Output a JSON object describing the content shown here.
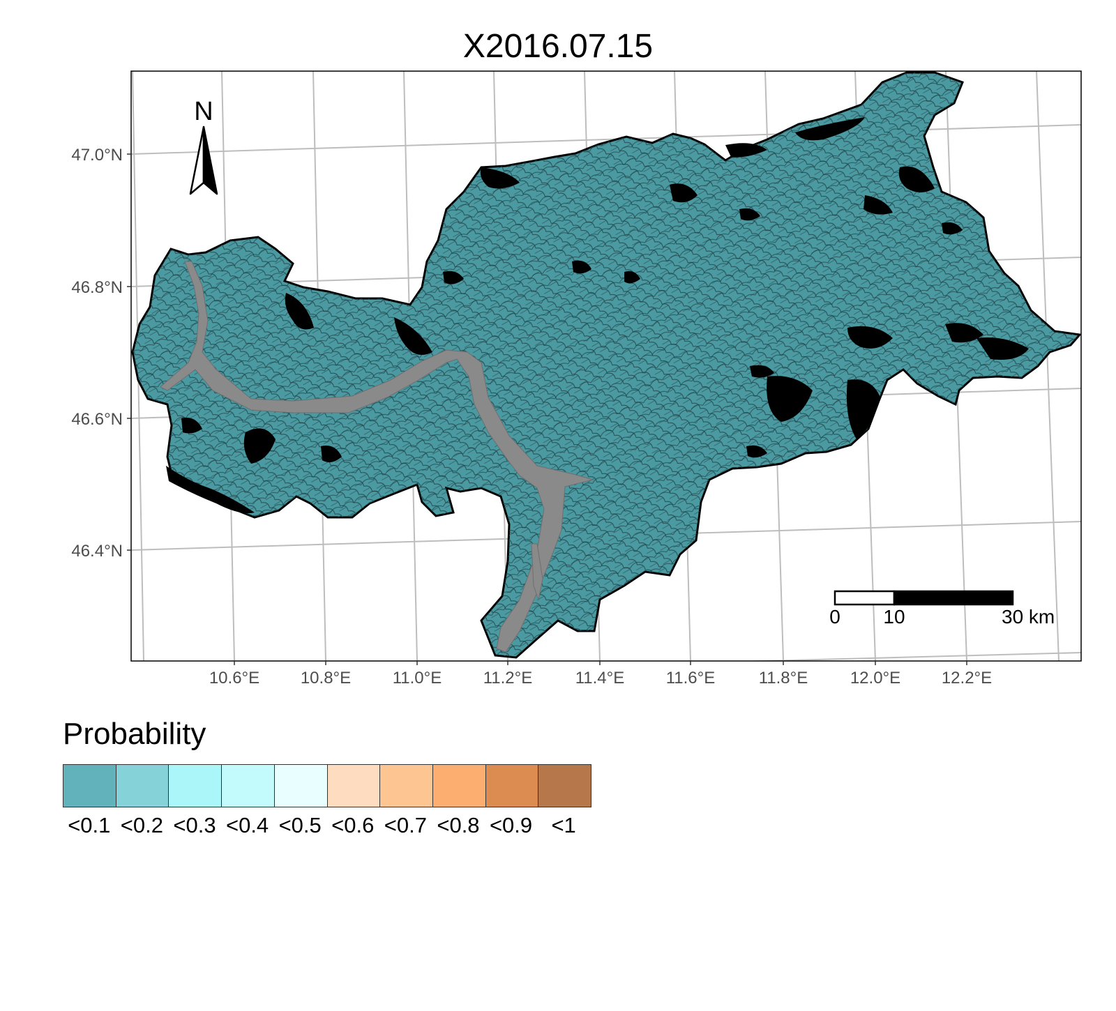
{
  "title": "X2016.07.15",
  "axes": {
    "lat_labels": [
      "47.0°N",
      "46.8°N",
      "46.6°N",
      "46.4°N"
    ],
    "lon_labels": [
      "10.6°E",
      "10.8°E",
      "11.0°E",
      "11.2°E",
      "11.4°E",
      "11.6°E",
      "11.8°E",
      "12.0°E",
      "12.2°E"
    ]
  },
  "north_arrow": {
    "label": "N",
    "icon": "north-arrow-icon"
  },
  "scale_bar": {
    "labels": [
      "0",
      "10",
      "30 km"
    ]
  },
  "legend": {
    "title": "Probability",
    "classes": [
      {
        "label": "<0.1",
        "color": "#62b2bb"
      },
      {
        "label": "<0.2",
        "color": "#85d3d9"
      },
      {
        "label": "<0.3",
        "color": "#aaf6f8"
      },
      {
        "label": "<0.4",
        "color": "#c3fafb"
      },
      {
        "label": "<0.5",
        "color": "#e9fefe"
      },
      {
        "label": "<0.6",
        "color": "#fedcbf"
      },
      {
        "label": "<0.7",
        "color": "#fcc592"
      },
      {
        "label": "<0.8",
        "color": "#fbae6f"
      },
      {
        "label": "<0.9",
        "color": "#dd8c51"
      },
      {
        "label": "<1",
        "color": "#b6774b"
      }
    ]
  },
  "colors": {
    "region_fill": "#4b99a1",
    "valley_fill": "#8a8a8a",
    "shadow_fill": "#000000",
    "graticule": "#bdbdbd"
  }
}
